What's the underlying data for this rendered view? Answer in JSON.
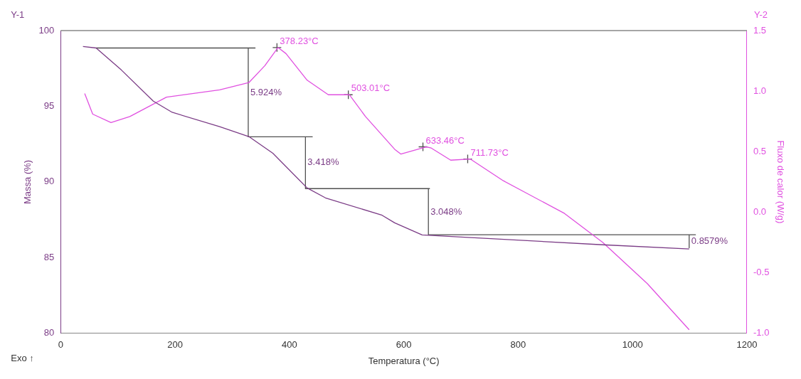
{
  "chart_data": {
    "type": "line",
    "xlabel": "Temperatura (°C)",
    "ylabel": "Massa (%)",
    "y2label": "Fluxo de calor (W/g)",
    "xlim": [
      0,
      1200
    ],
    "xticks": [
      0,
      200,
      400,
      600,
      800,
      1000,
      1200
    ],
    "ylim": [
      80,
      100
    ],
    "yticks": [
      80,
      85,
      90,
      95,
      100
    ],
    "y2lim": [
      -1.0,
      1.5
    ],
    "y2ticks": [
      {
        "value": -1,
        "label": "-1.0"
      },
      {
        "value": -0.5,
        "label": "-0.5"
      },
      {
        "value": 0,
        "label": "0.0"
      },
      {
        "value": 0.5,
        "label": "0.5"
      },
      {
        "value": 1,
        "label": "1.0"
      },
      {
        "value": 1.5,
        "label": "1.5"
      }
    ],
    "grid": false,
    "legend": false,
    "marker": "none",
    "line_style": "solid",
    "series": [
      {
        "color": "#7b3c86",
        "x": [
          39,
          62,
          106,
          162,
          195,
          278,
          329,
          371,
          431,
          463,
          562,
          584,
          632,
          948,
          1099
        ],
        "values": [
          98.95,
          98.85,
          97.4,
          95.34,
          94.6,
          93.65,
          93.0,
          91.9,
          89.6,
          88.95,
          87.8,
          87.3,
          86.5,
          85.85,
          85.57
        ]
      },
      {
        "color": "#e050e0",
        "axis": "y2",
        "x": [
          42,
          56,
          88,
          121,
          185,
          278,
          329,
          357,
          380,
          394,
          431,
          468,
          505,
          533,
          584,
          595,
          639,
          648,
          682,
          716,
          774,
          881,
          948,
          1026,
          1099
        ],
        "values": [
          0.98,
          0.81,
          0.74,
          0.79,
          0.95,
          1.01,
          1.07,
          1.21,
          1.36,
          1.31,
          1.09,
          0.97,
          0.97,
          0.79,
          0.52,
          0.48,
          0.54,
          0.53,
          0.43,
          0.44,
          0.26,
          -0.01,
          -0.25,
          -0.59,
          -0.97
        ]
      },
      {
        "type": "scatter",
        "marker": "cross",
        "color": "#505050",
        "axis": "y2",
        "x": [
          378.23,
          503.01,
          633.46,
          711.73
        ],
        "values": [
          1.36,
          0.97,
          0.54,
          0.44
        ]
      },
      {
        "color": "#505050",
        "x": [
          62,
          340,
          328,
          328,
          440,
          428,
          428,
          645,
          643,
          643,
          1110,
          1099,
          1099
        ],
        "values": [
          98.85,
          98.85,
          98.85,
          92.98,
          92.98,
          92.98,
          89.56,
          89.56,
          89.56,
          86.51,
          86.51,
          86.51,
          85.65
        ]
      }
    ],
    "annotations": [
      "378.23°C",
      "503.01°C",
      "633.46°C",
      "711.73°C",
      {
        "text": "5.924%",
        "x": 328,
        "y": 95.9
      },
      {
        "text": "3.418%",
        "x": 428,
        "y": 91.3
      },
      {
        "text": "3.048%",
        "x": 643,
        "y": 88.0
      },
      {
        "text": "0.8579%",
        "x": 1099,
        "y": 86.1
      },
      "Y-1",
      "Y-2",
      "Exo ↑"
    ]
  }
}
